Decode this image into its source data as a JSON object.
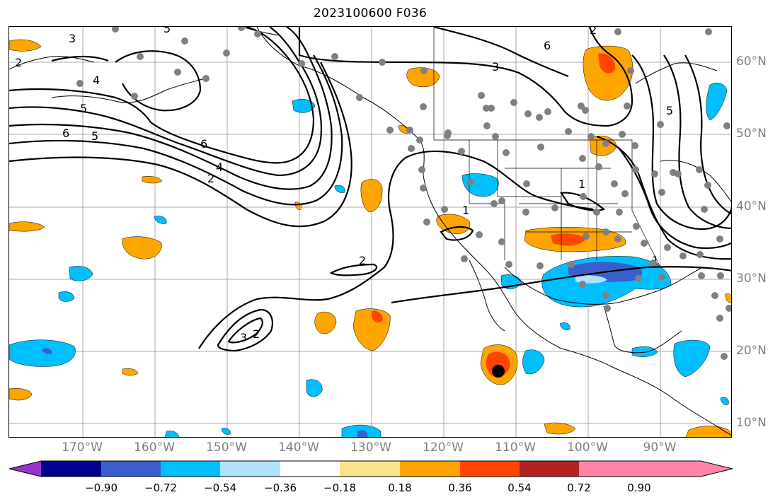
{
  "title": "2023100600 F036",
  "longitude_labels": [
    "170°W",
    "160°W",
    "150°W",
    "140°W",
    "130°W",
    "120°W",
    "110°W",
    "100°W",
    "90°W"
  ],
  "latitude_labels": [
    "60°N",
    "50°N",
    "40°N",
    "30°N",
    "20°N",
    "10°N"
  ],
  "contour_labels": {
    "alaska_west": [
      "2",
      "4",
      "5",
      "6",
      "5",
      "3",
      "5"
    ],
    "pacific_trough": [
      "6",
      "4",
      "2"
    ],
    "subtropical": [
      "2",
      "3",
      "2",
      "1"
    ],
    "plains": [
      "1",
      "1",
      "6",
      "5",
      "3",
      "2"
    ]
  },
  "colorbar": {
    "tick_labels": [
      "−0.90",
      "−0.72",
      "−0.54",
      "−0.36",
      "−0.18",
      "0.18",
      "0.36",
      "0.54",
      "0.72",
      "0.90"
    ],
    "colors": [
      "#9932cc",
      "#00008b",
      "#3a5fcd",
      "#00bfff",
      "#b0e2ff",
      "#ffffff",
      "#fbe38a",
      "#ffa500",
      "#ff4500",
      "#b22222",
      "#ff85a8"
    ]
  },
  "feature_colors": {
    "station_dots": "#808080",
    "contour_lines": "#000000",
    "gridlines": "#a0a0a0",
    "storm_marker": "#000000"
  }
}
